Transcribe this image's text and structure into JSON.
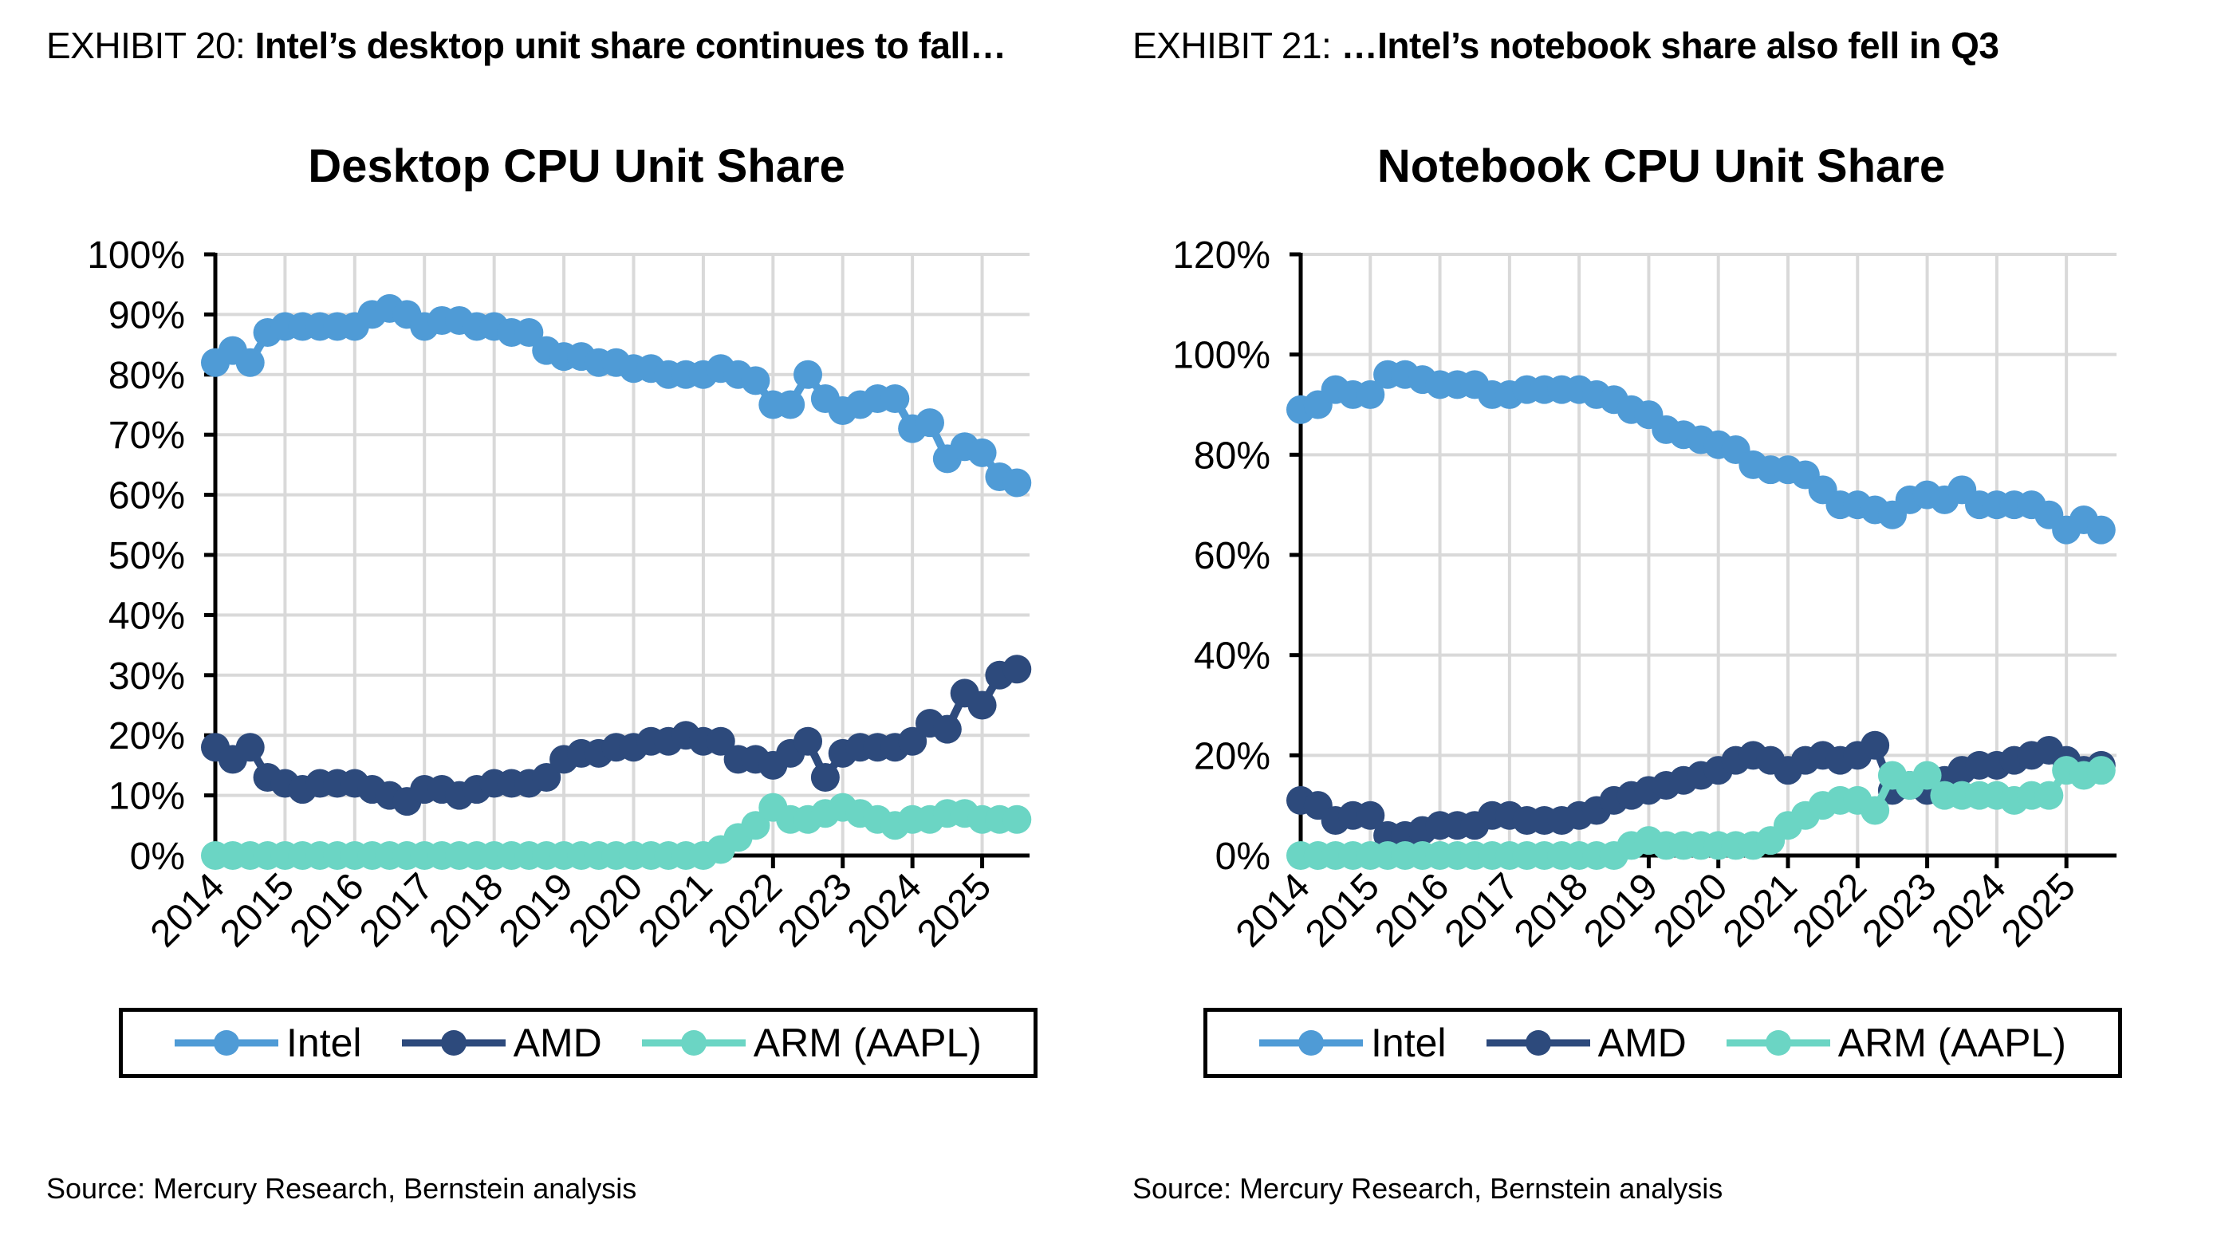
{
  "exhibits": [
    {
      "label": "EXHIBIT 20:",
      "headline": "Intel’s desktop unit share continues to fall…",
      "source": "Source: Mercury Research, Bernstein analysis"
    },
    {
      "label": "EXHIBIT 21:",
      "headline": "…Intel’s notebook share also fell in Q3",
      "source": "Source: Mercury Research, Bernstein analysis"
    }
  ],
  "colors": {
    "Intel": "#4f9bd6",
    "AMD": "#2d4a7c",
    "ARM (AAPL)": "#6bd5c4",
    "grid": "#d9d9d9",
    "axis": "#000000"
  },
  "chart_data": [
    {
      "type": "line",
      "title": "Desktop CPU Unit Share",
      "xlabel": "",
      "ylabel": "",
      "x": [
        "2014-Q1",
        "2014-Q2",
        "2014-Q3",
        "2014-Q4",
        "2015-Q1",
        "2015-Q2",
        "2015-Q3",
        "2015-Q4",
        "2016-Q1",
        "2016-Q2",
        "2016-Q3",
        "2016-Q4",
        "2017-Q1",
        "2017-Q2",
        "2017-Q3",
        "2017-Q4",
        "2018-Q1",
        "2018-Q2",
        "2018-Q3",
        "2018-Q4",
        "2019-Q1",
        "2019-Q2",
        "2019-Q3",
        "2019-Q4",
        "2020-Q1",
        "2020-Q2",
        "2020-Q3",
        "2020-Q4",
        "2021-Q1",
        "2021-Q2",
        "2021-Q3",
        "2021-Q4",
        "2022-Q1",
        "2022-Q2",
        "2022-Q3",
        "2022-Q4",
        "2023-Q1",
        "2023-Q2",
        "2023-Q3",
        "2023-Q4",
        "2024-Q1",
        "2024-Q2",
        "2024-Q3",
        "2024-Q4",
        "2025-Q1",
        "2025-Q2",
        "2025-Q3"
      ],
      "x_ticks": [
        "2014",
        "2015",
        "2016",
        "2017",
        "2018",
        "2019",
        "2020",
        "2021",
        "2022",
        "2023",
        "2024",
        "2025"
      ],
      "ylim": [
        0,
        100
      ],
      "y_ticks": [
        "0%",
        "10%",
        "20%",
        "30%",
        "40%",
        "50%",
        "60%",
        "70%",
        "80%",
        "90%",
        "100%"
      ],
      "grid": true,
      "legend": "bottom",
      "series": [
        {
          "name": "Intel",
          "values": [
            82,
            84,
            82,
            87,
            88,
            88,
            88,
            88,
            88,
            90,
            91,
            90,
            88,
            89,
            89,
            88,
            88,
            87,
            87,
            84,
            83,
            83,
            82,
            82,
            81,
            81,
            80,
            80,
            80,
            81,
            80,
            79,
            75,
            75,
            80,
            76,
            74,
            75,
            76,
            76,
            71,
            72,
            66,
            68,
            67,
            63,
            62
          ]
        },
        {
          "name": "AMD",
          "values": [
            18,
            16,
            18,
            13,
            12,
            11,
            12,
            12,
            12,
            11,
            10,
            9,
            11,
            11,
            10,
            11,
            12,
            12,
            12,
            13,
            16,
            17,
            17,
            18,
            18,
            19,
            19,
            20,
            19,
            19,
            16,
            16,
            15,
            17,
            19,
            13,
            17,
            18,
            18,
            18,
            19,
            22,
            21,
            27,
            25,
            30,
            31
          ]
        },
        {
          "name": "ARM (AAPL)",
          "values": [
            0,
            0,
            0,
            0,
            0,
            0,
            0,
            0,
            0,
            0,
            0,
            0,
            0,
            0,
            0,
            0,
            0,
            0,
            0,
            0,
            0,
            0,
            0,
            0,
            0,
            0,
            0,
            0,
            0,
            1,
            3,
            5,
            8,
            6,
            6,
            7,
            8,
            7,
            6,
            5,
            6,
            6,
            7,
            7,
            6,
            6,
            6
          ]
        }
      ]
    },
    {
      "type": "line",
      "title": "Notebook CPU Unit Share",
      "xlabel": "",
      "ylabel": "",
      "x": [
        "2014-Q1",
        "2014-Q2",
        "2014-Q3",
        "2014-Q4",
        "2015-Q1",
        "2015-Q2",
        "2015-Q3",
        "2015-Q4",
        "2016-Q1",
        "2016-Q2",
        "2016-Q3",
        "2016-Q4",
        "2017-Q1",
        "2017-Q2",
        "2017-Q3",
        "2017-Q4",
        "2018-Q1",
        "2018-Q2",
        "2018-Q3",
        "2018-Q4",
        "2019-Q1",
        "2019-Q2",
        "2019-Q3",
        "2019-Q4",
        "2020-Q1",
        "2020-Q2",
        "2020-Q3",
        "2020-Q4",
        "2021-Q1",
        "2021-Q2",
        "2021-Q3",
        "2021-Q4",
        "2022-Q1",
        "2022-Q2",
        "2022-Q3",
        "2022-Q4",
        "2023-Q1",
        "2023-Q2",
        "2023-Q3",
        "2023-Q4",
        "2024-Q1",
        "2024-Q2",
        "2024-Q3",
        "2024-Q4",
        "2025-Q1",
        "2025-Q2",
        "2025-Q3"
      ],
      "x_ticks": [
        "2014",
        "2015",
        "2016",
        "2017",
        "2018",
        "2019",
        "2020",
        "2021",
        "2022",
        "2023",
        "2024",
        "2025"
      ],
      "ylim": [
        0,
        120
      ],
      "y_ticks": [
        "0%",
        "20%",
        "40%",
        "60%",
        "80%",
        "100%",
        "120%"
      ],
      "grid": true,
      "legend": "bottom",
      "series": [
        {
          "name": "Intel",
          "values": [
            89,
            90,
            93,
            92,
            92,
            96,
            96,
            95,
            94,
            94,
            94,
            92,
            92,
            93,
            93,
            93,
            93,
            92,
            91,
            89,
            88,
            85,
            84,
            83,
            82,
            81,
            78,
            77,
            77,
            76,
            73,
            70,
            70,
            69,
            68,
            71,
            72,
            71,
            73,
            70,
            70,
            70,
            70,
            68,
            65,
            67,
            65
          ]
        },
        {
          "name": "AMD",
          "values": [
            11,
            10,
            7,
            8,
            8,
            4,
            4,
            5,
            6,
            6,
            6,
            8,
            8,
            7,
            7,
            7,
            8,
            9,
            11,
            12,
            13,
            14,
            15,
            16,
            17,
            19,
            20,
            19,
            17,
            19,
            20,
            19,
            20,
            22,
            13,
            14,
            13,
            15,
            17,
            18,
            18,
            19,
            20,
            21,
            19,
            17,
            18
          ]
        },
        {
          "name": "ARM (AAPL)",
          "values": [
            0,
            0,
            0,
            0,
            0,
            0,
            0,
            0,
            0,
            0,
            0,
            0,
            0,
            0,
            0,
            0,
            0,
            0,
            0,
            2,
            3,
            2,
            2,
            2,
            2,
            2,
            2,
            3,
            6,
            8,
            10,
            11,
            11,
            9,
            16,
            14,
            16,
            12,
            12,
            12,
            12,
            11,
            12,
            12,
            17,
            16,
            17
          ]
        }
      ]
    }
  ]
}
